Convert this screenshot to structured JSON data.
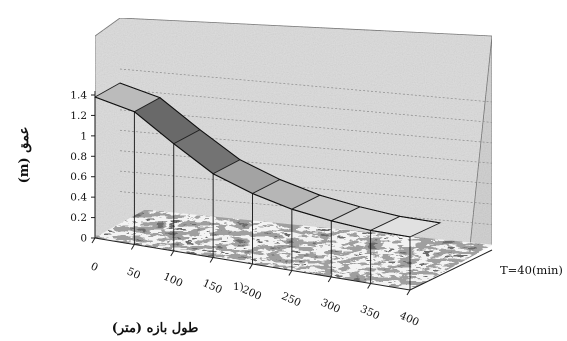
{
  "chart_data": {
    "type": "area",
    "subtype": "3d-surface",
    "x": [
      0,
      50,
      100,
      150,
      200,
      250,
      300,
      350,
      400
    ],
    "x_tick_labels": [
      "0",
      "50",
      "100",
      "150",
      "200",
      "250",
      "300",
      "350",
      "400"
    ],
    "series": [
      {
        "name": "T=40(min)",
        "values": [
          1.38,
          1.3,
          1.05,
          0.82,
          0.69,
          0.6,
          0.55,
          0.52,
          0.52
        ]
      }
    ],
    "y_ticks": [
      "0",
      "0.2",
      "0.4",
      "0.6",
      "0.8",
      "1",
      "1.2",
      "1.4"
    ],
    "ylim": [
      0,
      1.4
    ],
    "xlabel": "طول بازه (متر)",
    "ylabel": "عمق (m)",
    "stray_label": "1)",
    "grid": true,
    "colors": {
      "wall": "#d9d9d9",
      "surface_dark": "#606060",
      "surface_light": "#e6e6e6",
      "floor": "#2a2a2a"
    }
  }
}
